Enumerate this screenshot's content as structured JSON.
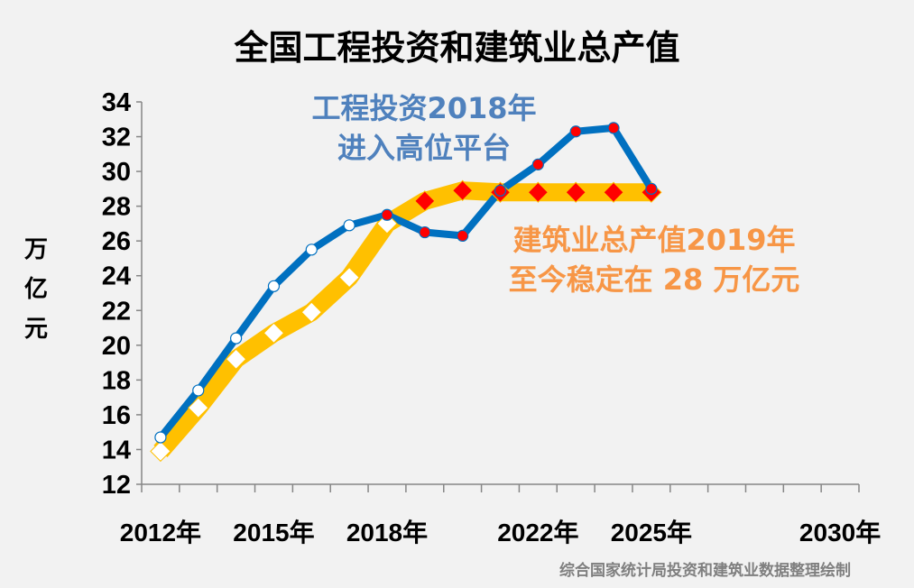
{
  "chart_data": {
    "type": "line",
    "title": "全国工程投资和建筑业总产值",
    "ylabel": "万亿元",
    "xlabel": "",
    "ylim": [
      12,
      34
    ],
    "yticks": [
      12,
      14,
      16,
      18,
      20,
      22,
      24,
      26,
      28,
      30,
      32,
      34
    ],
    "x": [
      2012,
      2013,
      2014,
      2015,
      2016,
      2017,
      2018,
      2019,
      2020,
      2021,
      2022,
      2023,
      2024,
      2025
    ],
    "xlim": [
      2012,
      2030
    ],
    "xtick_labels": [
      {
        "year": 2012,
        "label": "2012年"
      },
      {
        "year": 2015,
        "label": "2015年"
      },
      {
        "year": 2018,
        "label": "2018年"
      },
      {
        "year": 2022,
        "label": "2022年"
      },
      {
        "year": 2025,
        "label": "2025年"
      },
      {
        "year": 2030,
        "label": "2030年"
      }
    ],
    "grid": false,
    "series": [
      {
        "color": "#0070c0",
        "marker": "circle",
        "values": [
          14.7,
          17.4,
          20.4,
          23.4,
          25.5,
          26.9,
          27.5,
          26.5,
          26.3,
          28.9,
          30.4,
          32.3,
          32.5,
          29.0
        ],
        "highlight_from": 2018
      },
      {
        "color": "#ffc000",
        "marker": "diamond",
        "values": [
          13.9,
          16.4,
          19.2,
          20.7,
          21.9,
          23.9,
          27.0,
          28.3,
          28.9,
          28.8,
          28.8,
          28.8,
          28.8,
          28.8
        ],
        "highlight_from": 2019
      }
    ],
    "annotations": [
      {
        "lines": [
          "工程投资2018年",
          "进入高位平台"
        ],
        "color": "#4f81bd"
      },
      {
        "lines": [
          "建筑业总产值2019年",
          "至今稳定在 28 万亿元"
        ],
        "color": "#f79646"
      }
    ],
    "source": "综合国家统计局投资和建筑业数据整理绘制"
  },
  "colors": {
    "highlight_marker": "#ff0000",
    "normal_marker": "#ffffff"
  }
}
